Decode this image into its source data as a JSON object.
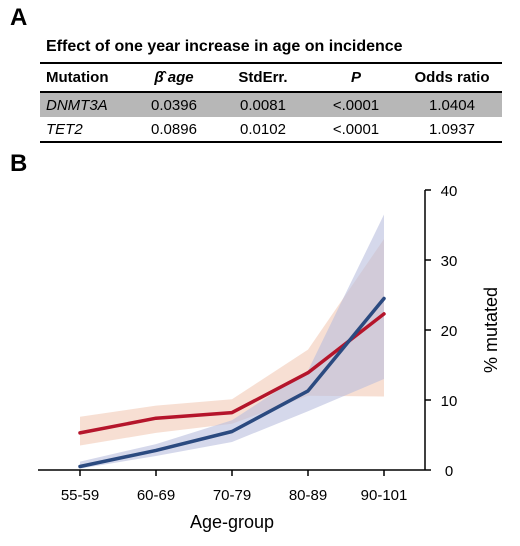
{
  "panel_a": {
    "letter": "A",
    "title": "Effect of one year increase in age on incidence",
    "headers": [
      "Mutation",
      "β̂ age",
      "StdErr.",
      "P",
      "Odds ratio"
    ],
    "rows": [
      {
        "mutation": "DNMT3A",
        "beta": "0.0396",
        "stderr": "0.0081",
        "p": "<.0001",
        "odds_ratio": "1.0404",
        "shaded": true
      },
      {
        "mutation": "TET2",
        "beta": "0.0896",
        "stderr": "0.0102",
        "p": "<.0001",
        "odds_ratio": "1.0937",
        "shaded": false
      }
    ]
  },
  "panel_b": {
    "letter": "B"
  },
  "chart_data": {
    "type": "line",
    "categories": [
      "55-59",
      "60-69",
      "70-79",
      "80-89",
      "90-101"
    ],
    "xlabel": "Age-group",
    "ylabel": "% mutated",
    "ylim": [
      0,
      40
    ],
    "yticks": [
      0,
      10,
      20,
      30,
      40
    ],
    "y_axis_side": "right",
    "grid": false,
    "series": [
      {
        "color": "#b5152b",
        "band_color": "#f1c9b5",
        "values": [
          5.3,
          7.4,
          8.2,
          13.9,
          22.3
        ],
        "lower": [
          3.5,
          5.3,
          6.6,
          10.6,
          10.5
        ],
        "upper": [
          7.6,
          9.2,
          10.1,
          17.2,
          33.0
        ]
      },
      {
        "color": "#2b4a80",
        "band_color": "#b9bede",
        "values": [
          0.5,
          2.8,
          5.5,
          11.3,
          24.5
        ],
        "lower": [
          0.2,
          2.0,
          4.0,
          8.4,
          13.0
        ],
        "upper": [
          1.2,
          3.7,
          7.1,
          14.2,
          36.5
        ]
      }
    ]
  }
}
